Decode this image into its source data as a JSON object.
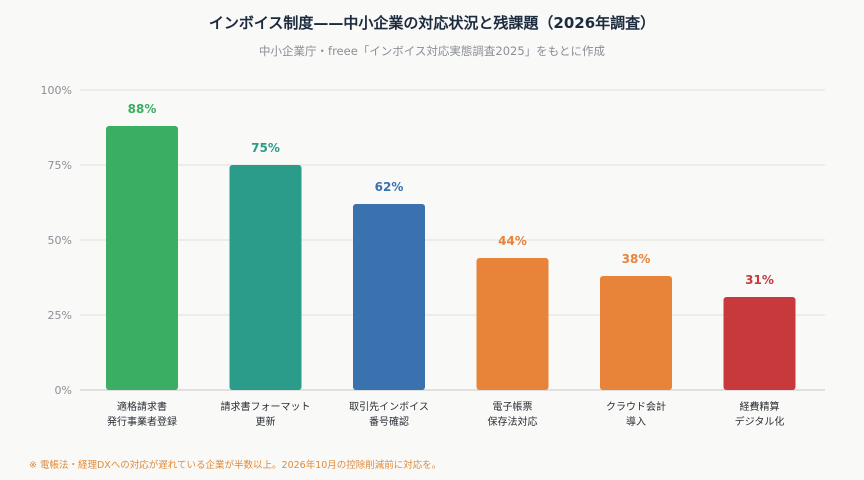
{
  "header": {
    "title": "インボイス制度——中小企業の対応状況と残課題（2026年調査）",
    "subtitle": "中小企業庁・freee「インボイス対応実態調査2025」をもとに作成"
  },
  "footnote": "※ 電帳法・経理DXへの対応が遅れている企業が半数以上。2026年10月の控除削減前に対応を。",
  "chart_data": {
    "type": "bar",
    "title": "インボイス制度——中小企業の対応状況と残課題（2026年調査）",
    "subtitle": "中小企業庁・freee「インボイス対応実態調査2025」をもとに作成",
    "categories": [
      [
        "適格請求書",
        "発行事業者登録"
      ],
      [
        "請求書フォーマット",
        "更新"
      ],
      [
        "取引先インボイス",
        "番号確認"
      ],
      [
        "電子帳票",
        "保存法対応"
      ],
      [
        "クラウド会計",
        "導入"
      ],
      [
        "経費精算",
        "デジタル化"
      ]
    ],
    "values": [
      88,
      75,
      62,
      44,
      38,
      31
    ],
    "value_labels": [
      "88%",
      "75%",
      "62%",
      "44%",
      "38%",
      "31%"
    ],
    "colors": [
      "#3aae62",
      "#2b9b8a",
      "#3a72b0",
      "#e8843a",
      "#e8843a",
      "#c8393c"
    ],
    "label_colors": [
      "#3aae62",
      "#2b9b8a",
      "#3a72b0",
      "#e8843a",
      "#e8843a",
      "#c8393c"
    ],
    "ylim": [
      0,
      100
    ],
    "yticks": [
      "0%",
      "25%",
      "50%",
      "75%",
      "100%"
    ],
    "grid": true,
    "legend": "none",
    "xlabel": "",
    "ylabel": ""
  }
}
